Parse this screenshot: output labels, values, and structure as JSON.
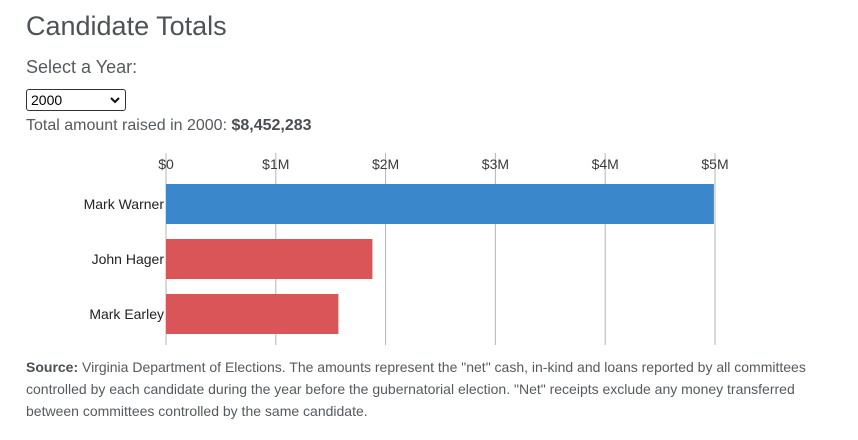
{
  "header": {
    "title": "Candidate Totals",
    "select_label": "Select a Year:",
    "selected_year": "2000",
    "total_prefix": "Total amount raised in 2000:",
    "total_amount": "$8,452,283"
  },
  "chart_data": {
    "type": "bar",
    "orientation": "horizontal",
    "categories": [
      "Mark Warner",
      "John Hager",
      "Mark Earley"
    ],
    "values": [
      4990000,
      1880000,
      1570000
    ],
    "colors": [
      "#3a87cc",
      "#d95557",
      "#d95557"
    ],
    "xlim": [
      0,
      5000000
    ],
    "ticks": [
      {
        "value": 0,
        "label": "$0"
      },
      {
        "value": 1000000,
        "label": "$1M"
      },
      {
        "value": 2000000,
        "label": "$2M"
      },
      {
        "value": 3000000,
        "label": "$3M"
      },
      {
        "value": 4000000,
        "label": "$4M"
      },
      {
        "value": 5000000,
        "label": "$5M"
      }
    ],
    "grid": true,
    "title": "",
    "xlabel": "",
    "ylabel": ""
  },
  "source": {
    "label": "Source:",
    "text": "Virginia Department of Elections. The amounts represent the \"net\" cash, in-kind and loans reported by all committees controlled by each candidate during the year before the gubernatorial election. \"Net\" receipts exclude any money transferred between committees controlled by the same candidate."
  }
}
